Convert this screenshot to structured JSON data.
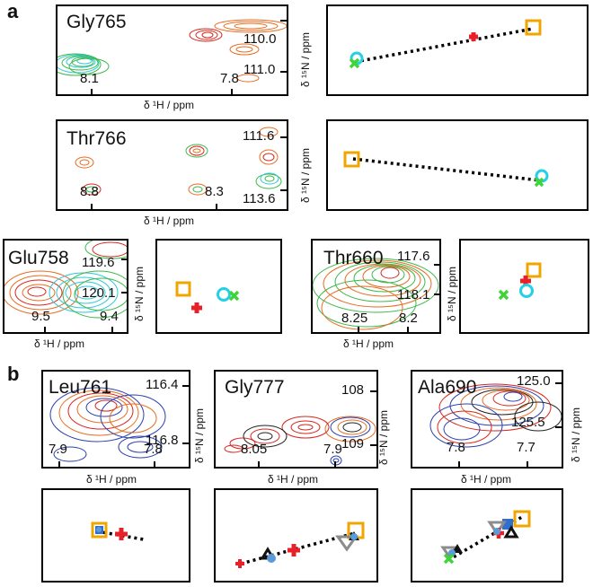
{
  "panel_labels": {
    "a": "a",
    "b": "b"
  },
  "axis_labels": {
    "h1": "δ ¹H / ppm",
    "n15": "δ ¹⁵N / ppm"
  },
  "spectra": {
    "gly765": {
      "residue": "Gly765",
      "ticks": [
        "8.1",
        "7.8",
        "110.0",
        "111.0"
      ]
    },
    "thr766": {
      "residue": "Thr766",
      "ticks": [
        "8.8",
        "8.3",
        "111.6",
        "113.6"
      ]
    },
    "glu758": {
      "residue": "Glu758",
      "ticks": [
        "9.5",
        "9.4",
        "119.6",
        "120.1"
      ]
    },
    "thr660": {
      "residue": "Thr660",
      "ticks": [
        "8.25",
        "8.2",
        "117.6",
        "118.1"
      ]
    },
    "leu761": {
      "residue": "Leu761",
      "ticks": [
        "7.9",
        "7.8",
        "116.4",
        "116.8"
      ]
    },
    "gly777": {
      "residue": "Gly777",
      "ticks": [
        "8.05",
        "7.9",
        "108",
        "109"
      ]
    },
    "ala690": {
      "residue": "Ala690",
      "ticks": [
        "7.8",
        "7.7",
        "125.0",
        "125.5"
      ]
    }
  },
  "colors": {
    "orange_square": "#f0a500",
    "red_cross": "#e8202a",
    "cyan_circle": "#25d0e6",
    "green_x": "#3fd43a",
    "blue_square": "#2e6fd1",
    "light_blue_circle": "#5a9bd8",
    "gray_triangle": "#8c8c8c",
    "black_triangle": "#111111",
    "spectrum_orange": "#e86a1e",
    "spectrum_red": "#d8261c",
    "spectrum_green": "#3cb84a",
    "spectrum_cyan": "#2cc8d8",
    "spectrum_blue": "#2b3fb0",
    "spectrum_black": "#222222"
  }
}
